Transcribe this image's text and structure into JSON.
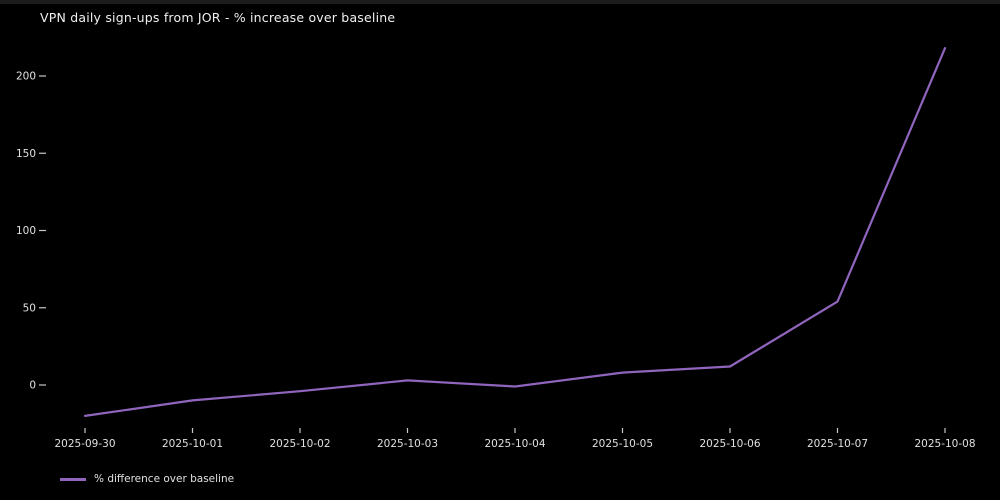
{
  "colors": {
    "background": "#000000",
    "line": "#9065bd",
    "text": "#e0e0e0",
    "tick_mark": "#c8c8c8",
    "top_strip": "#1c1c1c"
  },
  "chart_data": {
    "type": "line",
    "title": "VPN daily sign-ups from JOR - % increase over baseline",
    "x": [
      "2025-09-30",
      "2025-10-01",
      "2025-10-02",
      "2025-10-03",
      "2025-10-04",
      "2025-10-05",
      "2025-10-06",
      "2025-10-07",
      "2025-10-08"
    ],
    "series": [
      {
        "name": "% difference over baseline",
        "values": [
          -20,
          -10,
          -4,
          3,
          -1,
          8,
          12,
          54,
          218
        ],
        "color": "#9065bd"
      }
    ],
    "xlabel": "",
    "ylabel": "",
    "y_ticks": [
      0,
      50,
      100,
      150,
      200
    ],
    "ylim": [
      -30,
      230
    ],
    "grid": false,
    "legend_position": "bottom-left",
    "background": "dark"
  }
}
